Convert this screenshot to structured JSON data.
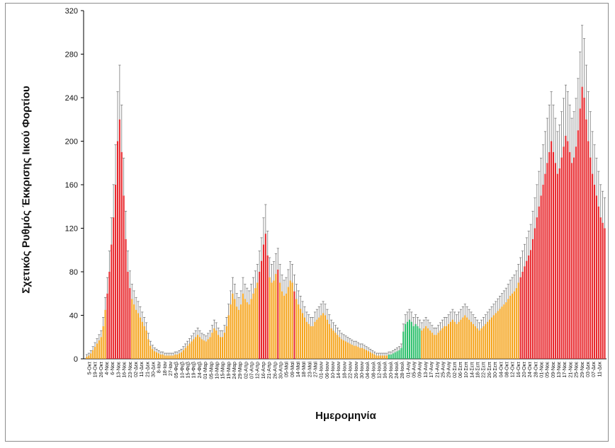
{
  "chart_data": {
    "type": "bar",
    "title": "",
    "ylabel": "Σχετικός Ρυθμός Έκκρισης Ιικού Φορτίου",
    "xlabel": "Ημερομηνία",
    "ylim": [
      0,
      320
    ],
    "yticks": [
      0,
      40,
      80,
      120,
      160,
      200,
      240,
      280,
      320
    ],
    "grid": false,
    "legend": "none",
    "error_bars": true,
    "colors": {
      "high": "#e8262b",
      "medium": "#f5a31a",
      "low": "#2bbf6b",
      "error": "#7a7a7a",
      "axis": "#000000"
    },
    "x_tick_labels": [
      "5-Οκτ",
      "19-Οκτ",
      "26-Οκτ",
      "4-Νοε",
      "6-Νοε",
      "13-Νοε",
      "16-Νοε",
      "23-Νοε",
      "02-Δεκ",
      "11-Δεκ",
      "21-Δεκ",
      "30-Δεκ",
      "8-Ιαν",
      "18-Ιαν",
      "27-Ιαν",
      "05-Φεβ",
      "10-Φεβ",
      "15-Φεβ",
      "19-Φεβ",
      "24-Φεβ",
      "01-Μαρ",
      "05-Μαρ",
      "10-Μαρ",
      "15-Μαρ",
      "19-Μαρ",
      "24-Μαρ",
      "29-Μαρ",
      "02-Απρ",
      "07-Απρ",
      "12-Απρ",
      "16-Απρ",
      "21-Απρ",
      "26-Απρ",
      "30-Απρ",
      "05-Μαϊ",
      "09-Μαϊ",
      "14-Μαϊ",
      "18-Μαϊ",
      "23-Μαϊ",
      "27-Μαϊ",
      "01-Ιουν",
      "06-Ιουν",
      "10-Ιουν",
      "14-Ιουν",
      "18-Ιουν",
      "22-Ιουν",
      "26-Ιουν",
      "30-Ιουν",
      "04-Ιουλ",
      "08-Ιουλ",
      "12-Ιουλ",
      "16-Ιουλ",
      "20-Ιουλ",
      "24-Ιουλ",
      "28-Ιουλ",
      "01-Αυγ",
      "05-Αυγ",
      "09-Αυγ",
      "13-Αυγ",
      "17-Αυγ",
      "21-Αυγ",
      "25-Αυγ",
      "29-Αυγ",
      "02-Σεπ",
      "06-Σεπ",
      "10-Σεπ",
      "14-Σεπ",
      "18-Σεπ",
      "22-Σεπ",
      "26-Σεπ",
      "30-Σεπ",
      "04-Οκτ",
      "08-Οκτ",
      "12-Οκτ",
      "16-Οκτ",
      "20-Οκτ",
      "24-Οκτ",
      "28-Οκτ",
      "01-Νοε",
      "05-Νοε",
      "09-Νοε",
      "13-Νοε",
      "17-Νοε",
      "21-Νοε",
      "25-Νοε",
      "29-Νοε",
      "03-Δεκ",
      "07-Δεκ",
      "11-Δεκ"
    ],
    "series": [
      {
        "category_per_point": "color class by level",
        "values": [
          2,
          3,
          5,
          8,
          11,
          14,
          17,
          20,
          30,
          45,
          60,
          80,
          105,
          130,
          160,
          200,
          220,
          190,
          150,
          110,
          80,
          65,
          55,
          50,
          45,
          42,
          38,
          34,
          30,
          26,
          18,
          12,
          9,
          7,
          6,
          5,
          4,
          4,
          3,
          3,
          3,
          3,
          3,
          4,
          4,
          5,
          6,
          8,
          10,
          12,
          14,
          16,
          18,
          20,
          22,
          20,
          18,
          17,
          16,
          18,
          20,
          24,
          28,
          26,
          22,
          20,
          20,
          24,
          30,
          40,
          50,
          60,
          55,
          48,
          45,
          50,
          60,
          55,
          52,
          50,
          55,
          60,
          65,
          70,
          80,
          90,
          105,
          115,
          95,
          75,
          70,
          72,
          78,
          82,
          70,
          62,
          58,
          60,
          66,
          72,
          70,
          62,
          55,
          50,
          46,
          42,
          38,
          34,
          32,
          30,
          30,
          34,
          36,
          38,
          40,
          42,
          40,
          36,
          32,
          28,
          26,
          24,
          22,
          20,
          18,
          17,
          16,
          15,
          14,
          13,
          12,
          12,
          11,
          10,
          10,
          9,
          8,
          7,
          6,
          5,
          4,
          3,
          3,
          3,
          3,
          3,
          3,
          4,
          4,
          5,
          6,
          7,
          8,
          10,
          25,
          32,
          34,
          36,
          34,
          30,
          32,
          30,
          28,
          26,
          28,
          30,
          28,
          26,
          24,
          22,
          22,
          24,
          26,
          28,
          30,
          30,
          32,
          34,
          36,
          34,
          32,
          34,
          36,
          38,
          40,
          38,
          36,
          34,
          32,
          30,
          28,
          26,
          28,
          30,
          32,
          34,
          36,
          38,
          40,
          42,
          44,
          46,
          48,
          50,
          52,
          55,
          58,
          60,
          62,
          65,
          70,
          75,
          80,
          85,
          90,
          95,
          100,
          110,
          120,
          130,
          140,
          150,
          160,
          170,
          180,
          190,
          200,
          190,
          180,
          170,
          175,
          185,
          195,
          205,
          200,
          190,
          180,
          185,
          195,
          210,
          230,
          250,
          240,
          220,
          200,
          185,
          170,
          160,
          150,
          140,
          130,
          125,
          120
        ]
      }
    ]
  }
}
